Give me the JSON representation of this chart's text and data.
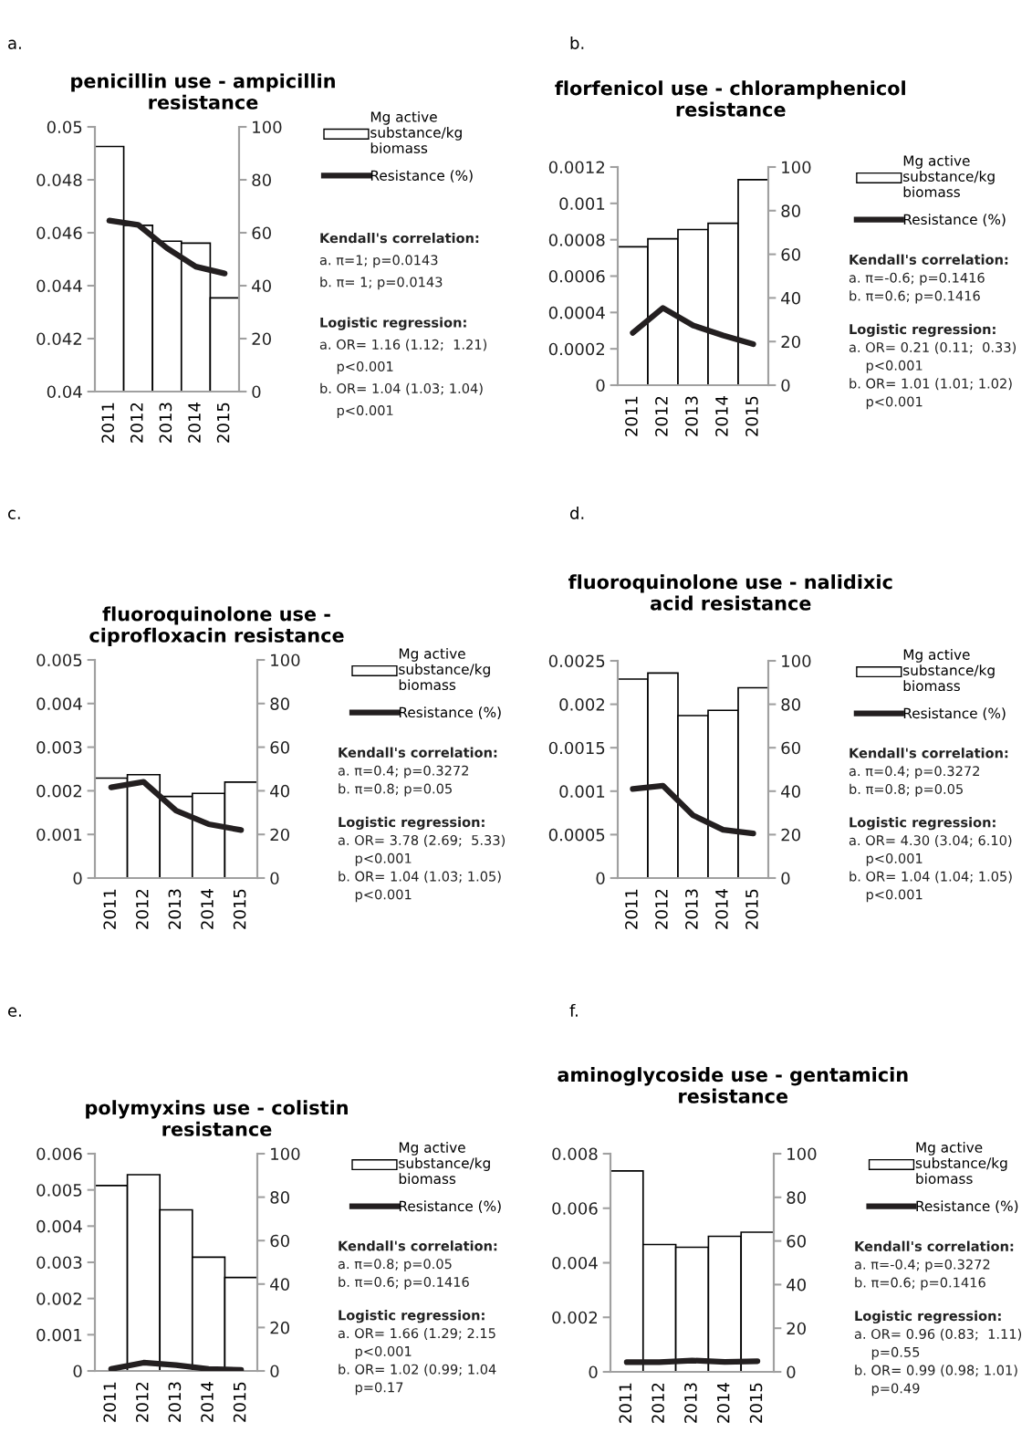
{
  "chart_data": [
    {
      "type": "bar",
      "title": "penicillin use - ampicillin\nresistance",
      "categories": [
        "2011",
        "2012",
        "2013",
        "2014",
        "2015"
      ],
      "series": [
        {
          "name": "Mg active\nsubstance/kg\nbiomass",
          "color": "#ffffff",
          "values": [
            0.04926,
            0.04628,
            0.04568,
            0.04561,
            0.04354
          ]
        },
        {
          "name": "Resistance (%)",
          "type": "line",
          "axis": "y2",
          "color": "#231f20",
          "values": [
            64.6,
            63.0,
            54.2,
            47.2,
            44.6
          ]
        }
      ],
      "ylim": [
        0.04,
        0.05
      ],
      "yticks": [
        0.04,
        0.042,
        0.044,
        0.046,
        0.048,
        0.05
      ],
      "y2lim": [
        0,
        100
      ],
      "y2ticks": [
        0,
        20,
        40,
        60,
        80,
        100
      ],
      "legend": "right",
      "grid": false,
      "annotations": [
        "a.",
        "Kendall's correlation:",
        "a. π=1; p=0.0143",
        "b. π= 1; p=0.0143",
        "Logistic regression:",
        "a. OR= 1.16 (1.12;  1.21)",
        "    p<0.001",
        "b. OR= 1.04 (1.03; 1.04)",
        "    p<0.001"
      ]
    },
    {
      "type": "bar",
      "title": "florfenicol use - chloramphenicol\nresistance",
      "categories": [
        "2011",
        "2012",
        "2013",
        "2014",
        "2015"
      ],
      "series": [
        {
          "name": "Mg active\nsubstance/kg\nbiomass",
          "color": "#ffffff",
          "values": [
            0.000761,
            0.000805,
            0.000856,
            0.000891,
            0.00113
          ]
        },
        {
          "name": "Resistance (%)",
          "type": "line",
          "axis": "y2",
          "color": "#231f20",
          "values": [
            24.0,
            35.4,
            27.4,
            22.8,
            18.8
          ]
        }
      ],
      "ylim": [
        0,
        0.0012
      ],
      "yticks": [
        0,
        0.0002,
        0.0004,
        0.0006,
        0.0008,
        0.001,
        0.0012
      ],
      "y2lim": [
        0,
        100
      ],
      "y2ticks": [
        0,
        20,
        40,
        60,
        80,
        100
      ],
      "legend": "right",
      "grid": false,
      "annotations": [
        "b.",
        "Kendall's correlation:",
        "a. π=-0.6; p=0.1416",
        "b. π=0.6; p=0.1416",
        "Logistic regression:",
        "a. OR= 0.21 (0.11;  0.33)",
        "    p<0.001",
        "b. OR= 1.01 (1.01; 1.02)",
        "    p<0.001"
      ]
    },
    {
      "type": "bar",
      "title": "fluoroquinolone use -\nciprofloxacin resistance",
      "categories": [
        "2011",
        "2012",
        "2013",
        "2014",
        "2015"
      ],
      "series": [
        {
          "name": "Mg active\nsubstance/kg\nbiomass",
          "color": "#ffffff",
          "values": [
            0.00229,
            0.00237,
            0.00187,
            0.00194,
            0.0022
          ]
        },
        {
          "name": "Resistance (%)",
          "type": "line",
          "axis": "y2",
          "color": "#231f20",
          "values": [
            41.6,
            44.1,
            30.9,
            24.7,
            22.0
          ]
        }
      ],
      "ylim": [
        0,
        0.005
      ],
      "yticks": [
        0,
        0.001,
        0.002,
        0.003,
        0.004,
        0.005
      ],
      "y2lim": [
        0,
        100
      ],
      "y2ticks": [
        0,
        20,
        40,
        60,
        80,
        100
      ],
      "legend": "right",
      "grid": false,
      "annotations": [
        "c.",
        "Kendall's correlation:",
        "a. π=0.4; p=0.3272",
        "b. π=0.8; p=0.05",
        "Logistic regression:",
        "a. OR= 3.78 (2.69;  5.33)",
        "    p<0.001",
        "b. OR= 1.04 (1.03; 1.05)",
        "    p<0.001"
      ]
    },
    {
      "type": "bar",
      "title": "fluoroquinolone use - nalidixic\nacid resistance",
      "categories": [
        "2011",
        "2012",
        "2013",
        "2014",
        "2015"
      ],
      "series": [
        {
          "name": "Mg active\nsubstance/kg\nbiomass",
          "color": "#ffffff",
          "values": [
            0.00229,
            0.00236,
            0.00187,
            0.00193,
            0.00219
          ]
        },
        {
          "name": "Resistance (%)",
          "type": "line",
          "axis": "y2",
          "color": "#231f20",
          "values": [
            41.0,
            42.5,
            28.9,
            22.2,
            20.5
          ]
        }
      ],
      "ylim": [
        0,
        0.0025
      ],
      "yticks": [
        0,
        0.0005,
        0.001,
        0.0015,
        0.002,
        0.0025
      ],
      "y2lim": [
        0,
        100
      ],
      "y2ticks": [
        0,
        20,
        40,
        60,
        80,
        100
      ],
      "legend": "right",
      "grid": false,
      "annotations": [
        "d.",
        "Kendall's correlation:",
        "a. π=0.4; p=0.3272",
        "b. π=0.8; p=0.05",
        "Logistic regression:",
        "a. OR= 4.30 (3.04; 6.10)",
        "    p<0.001",
        "b. OR= 1.04 (1.04; 1.05)",
        "    p<0.001"
      ]
    },
    {
      "type": "bar",
      "title": "polymyxins use - colistin\nresistance",
      "categories": [
        "2011",
        "2012",
        "2013",
        "2014",
        "2015"
      ],
      "series": [
        {
          "name": "Mg active\nsubstance/kg\nbiomass",
          "color": "#ffffff",
          "values": [
            0.00512,
            0.00542,
            0.00445,
            0.00314,
            0.00258
          ]
        },
        {
          "name": "Resistance (%)",
          "type": "line",
          "axis": "y2",
          "color": "#231f20",
          "values": [
            0.9,
            3.8,
            2.7,
            0.9,
            0.5
          ]
        }
      ],
      "ylim": [
        0,
        0.006
      ],
      "yticks": [
        0,
        0.001,
        0.002,
        0.003,
        0.004,
        0.005,
        0.006
      ],
      "y2lim": [
        0,
        100
      ],
      "y2ticks": [
        0,
        20,
        40,
        60,
        80,
        100
      ],
      "legend": "right",
      "grid": false,
      "annotations": [
        "e.",
        "Kendall's correlation:",
        "a. π=0.8; p=0.05",
        "b. π=0.6; p=0.1416",
        "Logistic regression:",
        "a. OR= 1.66 (1.29; 2.15",
        "    p<0.001",
        "b. OR= 1.02 (0.99; 1.04",
        "    p=0.17"
      ]
    },
    {
      "type": "bar",
      "title": "aminoglycoside use - gentamicin\nresistance",
      "categories": [
        "2011",
        "2012",
        "2013",
        "2014",
        "2015"
      ],
      "series": [
        {
          "name": "Mg active\nsubstance/kg\nbiomass",
          "color": "#ffffff",
          "values": [
            0.00737,
            0.00467,
            0.00457,
            0.00497,
            0.00512
          ]
        },
        {
          "name": "Resistance (%)",
          "type": "line",
          "axis": "y2",
          "color": "#231f20",
          "values": [
            4.4,
            4.4,
            5.2,
            4.6,
            4.9
          ]
        }
      ],
      "ylim": [
        0,
        0.008
      ],
      "yticks": [
        0,
        0.002,
        0.004,
        0.006,
        0.008
      ],
      "y2lim": [
        0,
        100
      ],
      "y2ticks": [
        0,
        20,
        40,
        60,
        80,
        100
      ],
      "legend": "right",
      "grid": false,
      "annotations": [
        "f.",
        "Kendall's correlation:",
        "a. π=-0.4; p=0.3272",
        "b. π=0.6; p=0.1416",
        "Logistic regression:",
        "a. OR= 0.96 (0.83;  1.11)",
        "    p=0.55",
        "b. OR= 0.99 (0.98; 1.01)",
        "    p=0.49"
      ]
    }
  ]
}
